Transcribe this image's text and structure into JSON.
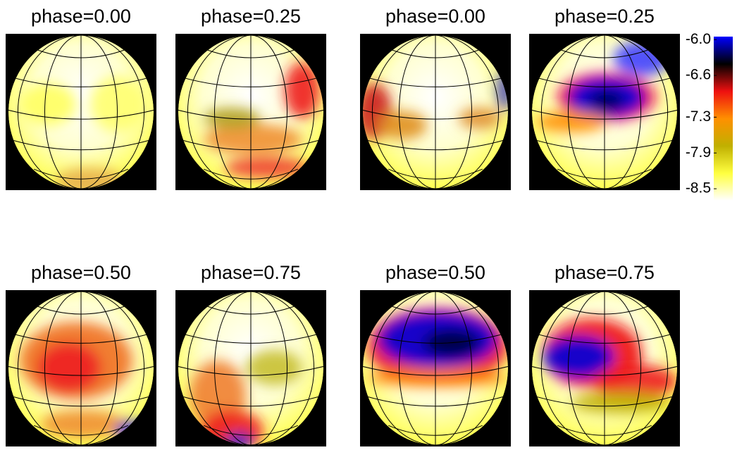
{
  "chart_data": {
    "type": "surface-maps",
    "panels": [
      {
        "title": "phase=0.00"
      },
      {
        "title": "phase=0.25"
      },
      {
        "title": "phase=0.00"
      },
      {
        "title": "phase=0.25"
      },
      {
        "title": "phase=0.50"
      },
      {
        "title": "phase=0.75"
      },
      {
        "title": "phase=0.50"
      },
      {
        "title": "phase=0.75"
      }
    ],
    "colorbar": {
      "ylim": [
        -8.7,
        -5.95
      ],
      "yticks": [
        {
          "value": -6.0,
          "label": "-6.0"
        },
        -6.6,
        -7.3,
        -7.9,
        -8.5
      ],
      "colors": [
        "#ffffff",
        "#ffff40",
        "#c0b000",
        "#ff9000",
        "#ee1010",
        "#000000",
        "#0000ff"
      ]
    }
  }
}
